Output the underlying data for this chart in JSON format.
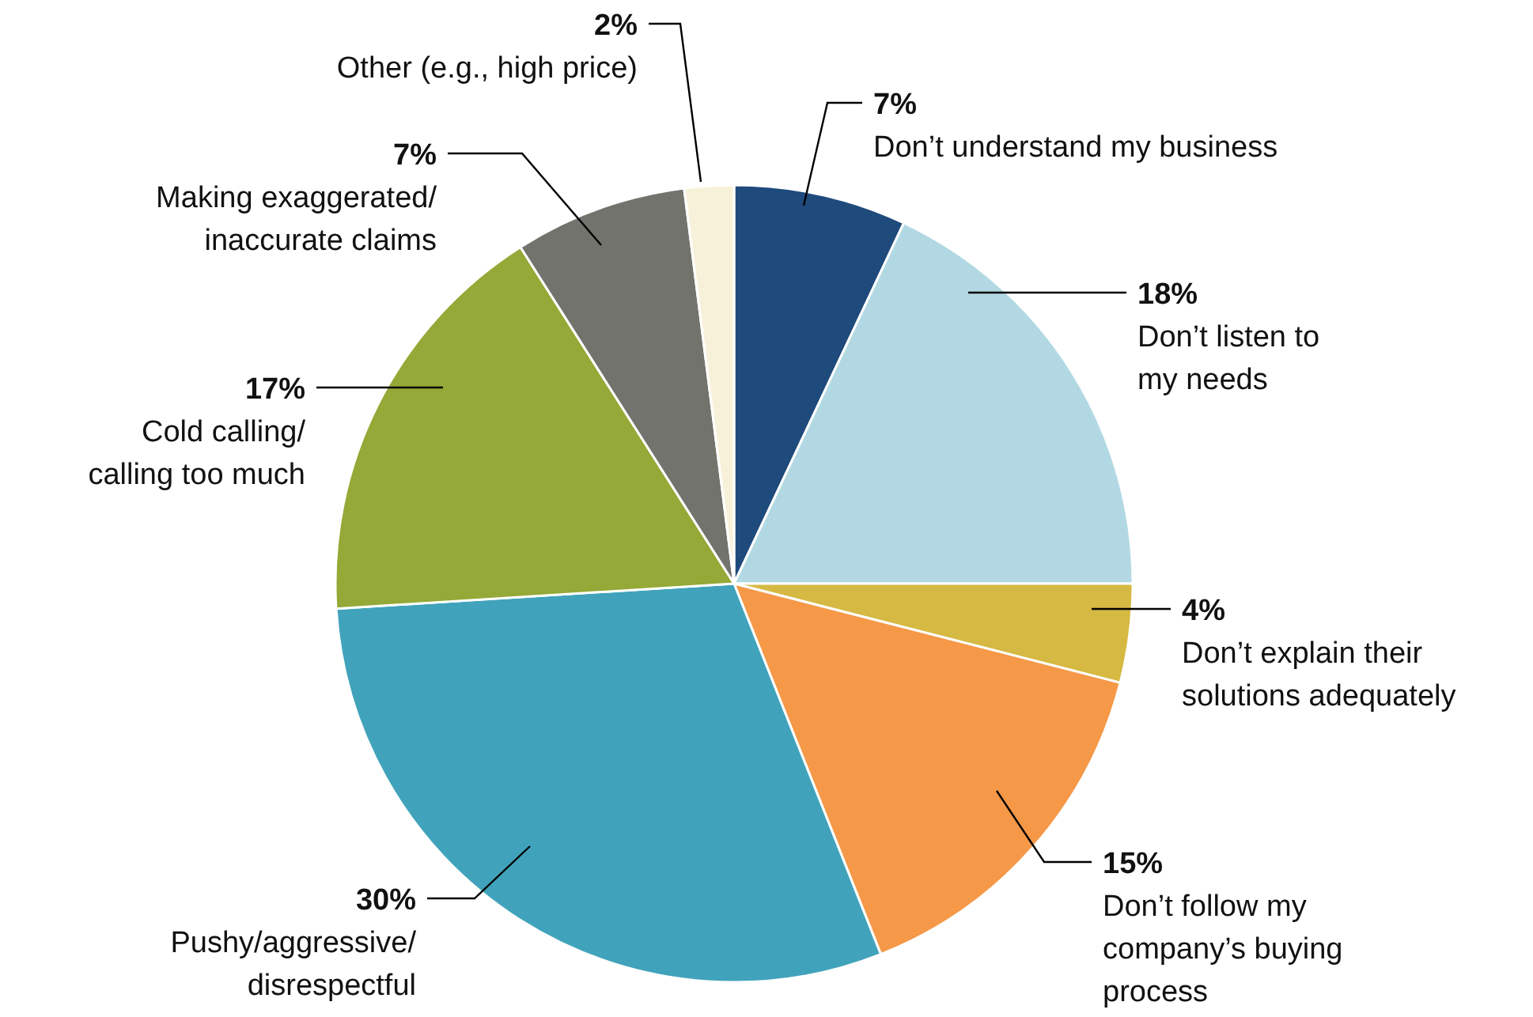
{
  "chart_data": {
    "type": "pie",
    "categories": [
      "Don’t understand my business",
      "Don’t listen to my needs",
      "Don’t explain their solutions adequately",
      "Don’t follow my company’s buying process",
      "Pushy/aggressive/ disrespectful",
      "Cold calling/ calling too much",
      "Making exaggerated/ inaccurate claims",
      "Other (e.g., high price)"
    ],
    "values": [
      7,
      18,
      4,
      15,
      30,
      17,
      7,
      2
    ],
    "value_labels": [
      "7%",
      "18%",
      "4%",
      "15%",
      "30%",
      "17%",
      "7%",
      "2%"
    ],
    "colors": [
      "#1f4a7c",
      "#b2d9e3",
      "#d5b942",
      "#f59847",
      "#41a3bb",
      "#94a937",
      "#73736d",
      "#f8f1d9"
    ]
  }
}
